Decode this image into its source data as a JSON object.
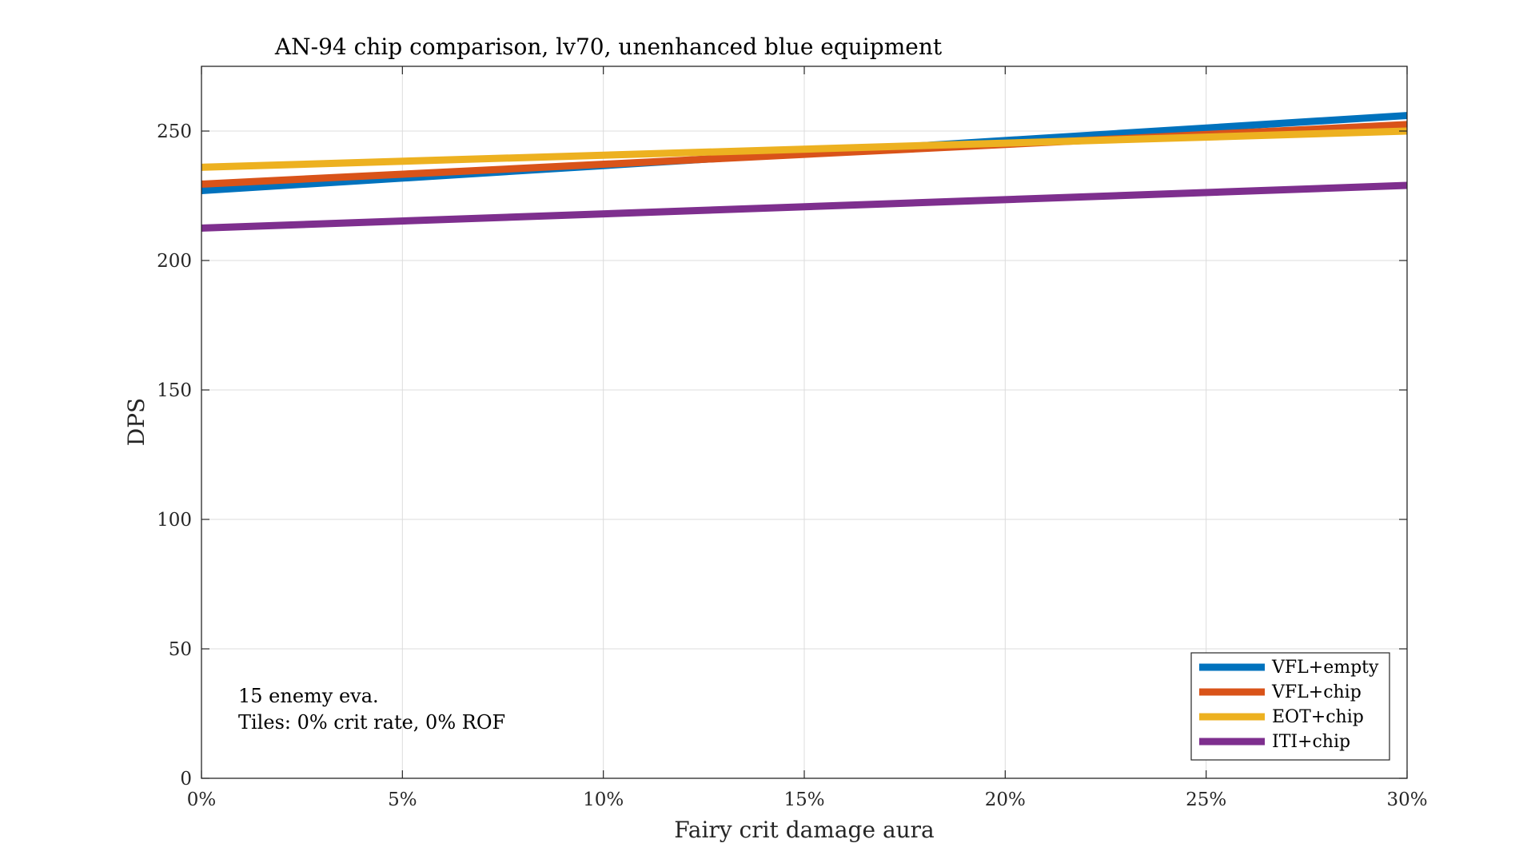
{
  "chart_data": {
    "type": "line",
    "title": "AN-94 chip comparison, lv70, unenhanced blue equipment",
    "xlabel": "Fairy crit damage aura",
    "ylabel": "DPS",
    "xlim": [
      0,
      30
    ],
    "ylim": [
      0,
      275
    ],
    "xticks": [
      0,
      5,
      10,
      15,
      20,
      25,
      30
    ],
    "xtick_labels": [
      "0%",
      "5%",
      "10%",
      "15%",
      "20%",
      "25%",
      "30%"
    ],
    "yticks": [
      0,
      50,
      100,
      150,
      200,
      250
    ],
    "ytick_labels": [
      "0",
      "50",
      "100",
      "150",
      "200",
      "250"
    ],
    "grid": true,
    "legend_position": "bottom-right",
    "annotations": [
      "15 enemy eva.",
      "Tiles: 0% crit rate, 0% ROF"
    ],
    "series": [
      {
        "name": "VFL+empty",
        "color": "#0072BD",
        "x": [
          0,
          30
        ],
        "y": [
          227,
          256
        ]
      },
      {
        "name": "VFL+chip",
        "color": "#D95319",
        "x": [
          0,
          30
        ],
        "y": [
          229.5,
          252.5
        ]
      },
      {
        "name": "EOT+chip",
        "color": "#EDB120",
        "x": [
          0,
          30
        ],
        "y": [
          236,
          250
        ]
      },
      {
        "name": "ITI+chip",
        "color": "#7E2F8E",
        "x": [
          0,
          30
        ],
        "y": [
          212.5,
          229
        ]
      }
    ]
  }
}
